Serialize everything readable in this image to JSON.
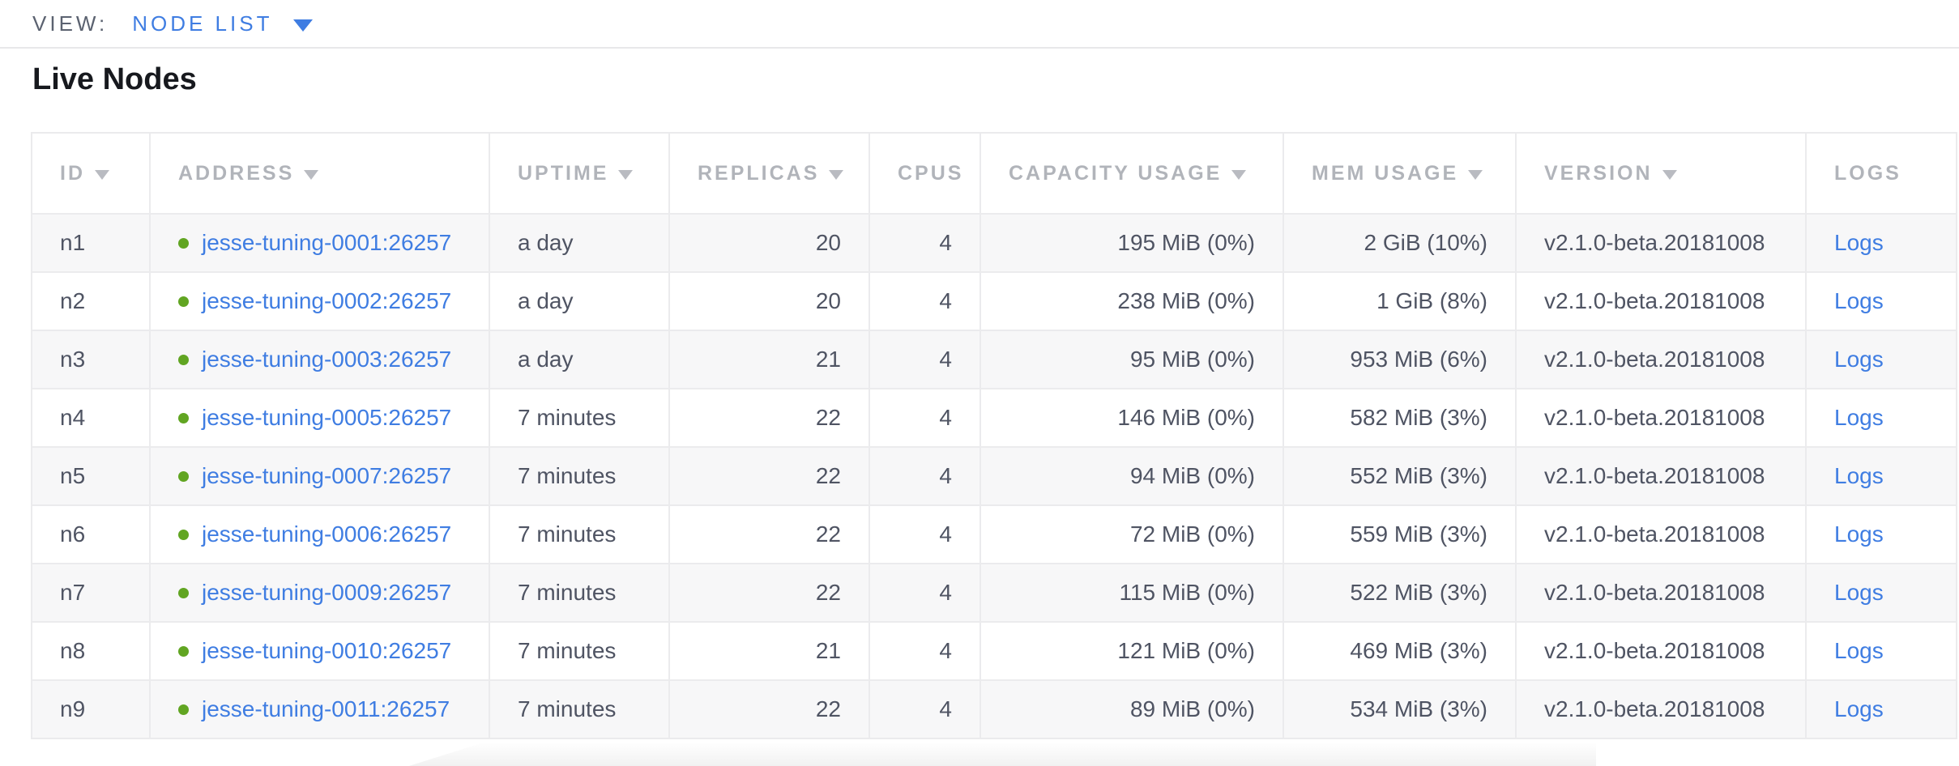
{
  "view_bar": {
    "label": "VIEW:",
    "selected": "NODE LIST"
  },
  "page": {
    "title": "Live Nodes"
  },
  "colors": {
    "accent_blue": "#3f7de2",
    "live_dot_green": "#61a522",
    "header_gray": "#b1b4ba",
    "body_text": "#4f5463",
    "stripe_row": "#f7f7f8"
  },
  "table": {
    "columns": [
      {
        "key": "id",
        "label": "ID",
        "sortable": true
      },
      {
        "key": "address",
        "label": "ADDRESS",
        "sortable": true
      },
      {
        "key": "uptime",
        "label": "UPTIME",
        "sortable": true
      },
      {
        "key": "replicas",
        "label": "REPLICAS",
        "sortable": true
      },
      {
        "key": "cpus",
        "label": "CPUS",
        "sortable": false
      },
      {
        "key": "capacity",
        "label": "CAPACITY USAGE",
        "sortable": true
      },
      {
        "key": "mem",
        "label": "MEM USAGE",
        "sortable": true
      },
      {
        "key": "version",
        "label": "VERSION",
        "sortable": true
      },
      {
        "key": "logs",
        "label": "LOGS",
        "sortable": false
      }
    ],
    "rows": [
      {
        "id": "n1",
        "status": "live",
        "address": "jesse-tuning-0001:26257",
        "uptime": "a day",
        "replicas": "20",
        "cpus": "4",
        "capacity": "195 MiB (0%)",
        "mem": "2 GiB (10%)",
        "version": "v2.1.0-beta.20181008",
        "logs": "Logs"
      },
      {
        "id": "n2",
        "status": "live",
        "address": "jesse-tuning-0002:26257",
        "uptime": "a day",
        "replicas": "20",
        "cpus": "4",
        "capacity": "238 MiB (0%)",
        "mem": "1 GiB (8%)",
        "version": "v2.1.0-beta.20181008",
        "logs": "Logs"
      },
      {
        "id": "n3",
        "status": "live",
        "address": "jesse-tuning-0003:26257",
        "uptime": "a day",
        "replicas": "21",
        "cpus": "4",
        "capacity": "95 MiB (0%)",
        "mem": "953 MiB (6%)",
        "version": "v2.1.0-beta.20181008",
        "logs": "Logs"
      },
      {
        "id": "n4",
        "status": "live",
        "address": "jesse-tuning-0005:26257",
        "uptime": "7 minutes",
        "replicas": "22",
        "cpus": "4",
        "capacity": "146 MiB (0%)",
        "mem": "582 MiB (3%)",
        "version": "v2.1.0-beta.20181008",
        "logs": "Logs"
      },
      {
        "id": "n5",
        "status": "live",
        "address": "jesse-tuning-0007:26257",
        "uptime": "7 minutes",
        "replicas": "22",
        "cpus": "4",
        "capacity": "94 MiB (0%)",
        "mem": "552 MiB (3%)",
        "version": "v2.1.0-beta.20181008",
        "logs": "Logs"
      },
      {
        "id": "n6",
        "status": "live",
        "address": "jesse-tuning-0006:26257",
        "uptime": "7 minutes",
        "replicas": "22",
        "cpus": "4",
        "capacity": "72 MiB (0%)",
        "mem": "559 MiB (3%)",
        "version": "v2.1.0-beta.20181008",
        "logs": "Logs"
      },
      {
        "id": "n7",
        "status": "live",
        "address": "jesse-tuning-0009:26257",
        "uptime": "7 minutes",
        "replicas": "22",
        "cpus": "4",
        "capacity": "115 MiB (0%)",
        "mem": "522 MiB (3%)",
        "version": "v2.1.0-beta.20181008",
        "logs": "Logs"
      },
      {
        "id": "n8",
        "status": "live",
        "address": "jesse-tuning-0010:26257",
        "uptime": "7 minutes",
        "replicas": "21",
        "cpus": "4",
        "capacity": "121 MiB (0%)",
        "mem": "469 MiB (3%)",
        "version": "v2.1.0-beta.20181008",
        "logs": "Logs"
      },
      {
        "id": "n9",
        "status": "live",
        "address": "jesse-tuning-0011:26257",
        "uptime": "7 minutes",
        "replicas": "22",
        "cpus": "4",
        "capacity": "89 MiB (0%)",
        "mem": "534 MiB (3%)",
        "version": "v2.1.0-beta.20181008",
        "logs": "Logs"
      }
    ]
  }
}
